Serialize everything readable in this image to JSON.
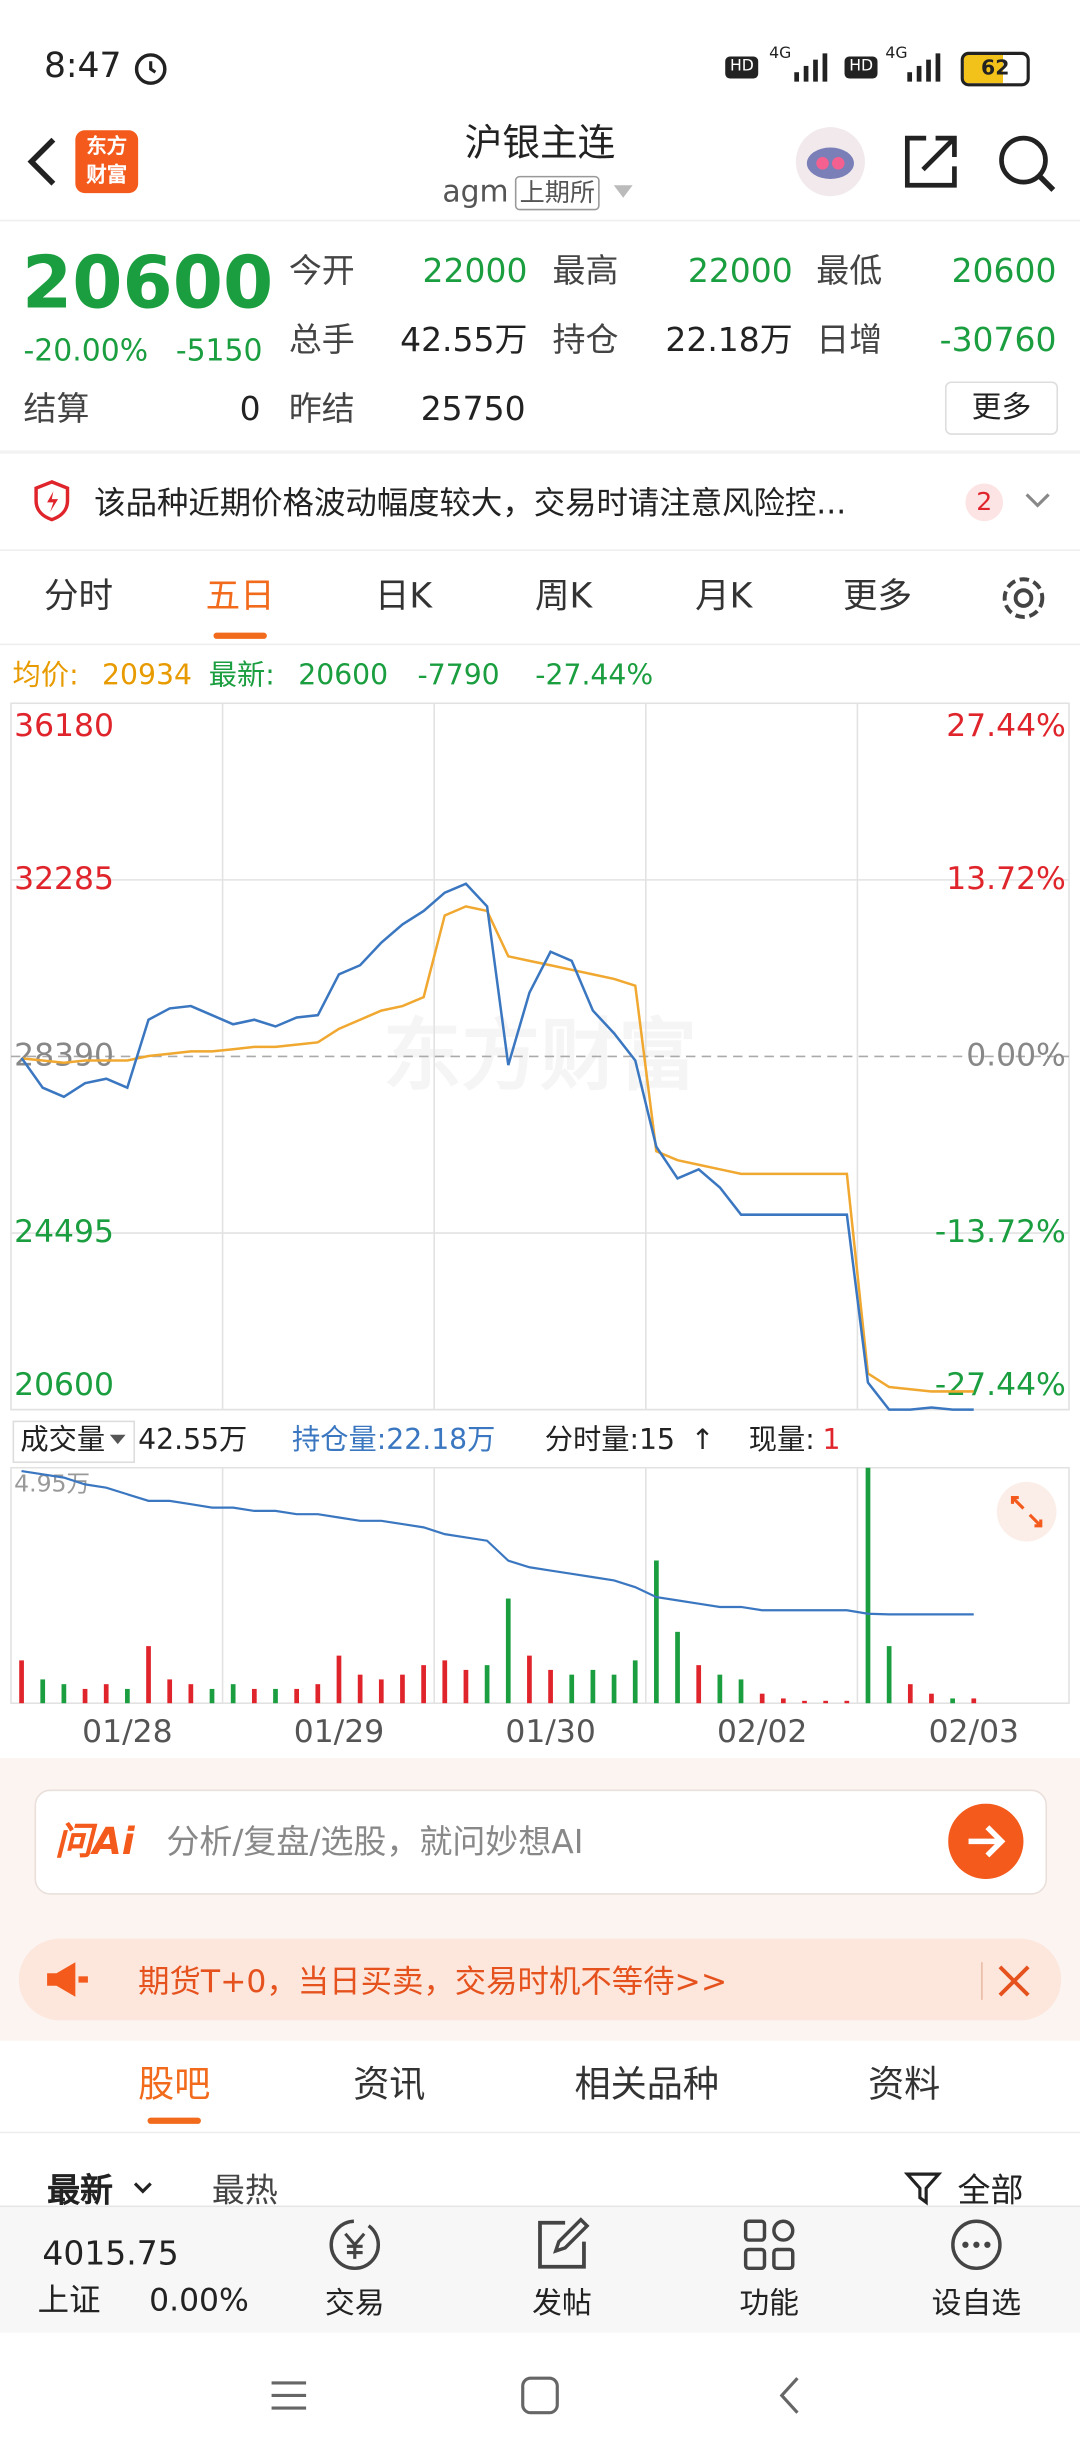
{
  "status_bar": {
    "time": "8:47",
    "indicators": [
      "HD",
      "4G",
      "HD",
      "4G"
    ],
    "battery": "62"
  },
  "header": {
    "logo": [
      "东方",
      "财富"
    ],
    "title": "沪银主连",
    "code": "agm",
    "exchange": "上期所"
  },
  "quote": {
    "price": 20600,
    "change_pct": "-20.00%",
    "change": -5150,
    "fields": [
      {
        "label": "今开",
        "value": 22000
      },
      {
        "label": "最高",
        "value": 22000
      },
      {
        "label": "最低",
        "value": 20600
      },
      {
        "label": "总手",
        "value": "42.55万"
      },
      {
        "label": "持仓",
        "value": "22.18万"
      },
      {
        "label": "日增",
        "value": -30760
      },
      {
        "label": "结算",
        "value": 0
      },
      {
        "label": "昨结",
        "value": 25750
      }
    ],
    "more": "更多"
  },
  "notice": {
    "text": "该品种近期价格波动幅度较大，交易时请注意风险控...",
    "badge": 2
  },
  "chart_tabs": {
    "items": [
      "分时",
      "五日",
      "日K",
      "周K",
      "月K",
      "更多"
    ],
    "active": 1
  },
  "chart_data": {
    "type": "line",
    "avg_label": "均价:",
    "avg": 20934,
    "latest_label": "最新:",
    "latest": 20600,
    "change": -7790,
    "change_pct": "-27.44%",
    "watermark": "东方财富",
    "ylim": [
      20600,
      36180
    ],
    "yticks": [
      20600,
      24495,
      28390,
      32285,
      36180
    ],
    "y2lim": [
      -27.44,
      27.44
    ],
    "y2ticks": [
      {
        "value": -27.44,
        "label": "-27.44%"
      },
      {
        "value": -13.72,
        "label": "-13.72%"
      },
      {
        "value": 0,
        "label": "0.00%"
      },
      {
        "value": 13.72,
        "label": "13.72%"
      },
      {
        "value": 27.44,
        "label": "27.44%"
      }
    ],
    "x_labels": [
      "01/28",
      "01/29",
      "01/30",
      "02/02",
      "02/03"
    ],
    "series": [
      {
        "color": "#3a77c0",
        "values": [
          28360,
          27700,
          27500,
          27800,
          27900,
          27700,
          29200,
          29450,
          29500,
          29300,
          29100,
          29200,
          29050,
          29250,
          29300,
          30200,
          30400,
          30900,
          31300,
          31600,
          32000,
          32200,
          31700,
          28200,
          29800,
          30700,
          30500,
          29400,
          28900,
          28300,
          26400,
          25700,
          25900,
          25500,
          24900,
          24900,
          24900,
          24900,
          24900,
          24900,
          21200,
          20600,
          20600,
          20650,
          20600,
          20600,
          null,
          null,
          null,
          null
        ]
      },
      {
        "color": "#f0a830",
        "values": [
          28350,
          28300,
          28250,
          28300,
          28300,
          28300,
          28400,
          28450,
          28500,
          28500,
          28550,
          28600,
          28600,
          28650,
          28700,
          29000,
          29200,
          29400,
          29500,
          29700,
          31500,
          31700,
          31600,
          30600,
          30500,
          30400,
          30300,
          30200,
          30100,
          29950,
          26300,
          26100,
          26000,
          25900,
          25800,
          25800,
          25800,
          25800,
          25800,
          25800,
          21400,
          21100,
          21050,
          21000,
          21000,
          21000,
          null,
          null,
          null,
          null
        ]
      }
    ],
    "volume": {
      "menu": "成交量",
      "total": "42.55万",
      "oi": "持仓量:22.18万",
      "tick": "分时量:15",
      "tick_dir": "↑",
      "last_label": "现量:",
      "last": 1,
      "ylim": [
        0,
        4.95
      ],
      "yticks": [
        {
          "value": 4.95,
          "label": "4.95万"
        }
      ],
      "up_color": "#e0242b",
      "down_color": "#1a9e3f",
      "values": [
        0.9,
        0.5,
        0.4,
        0.3,
        0.4,
        0.3,
        1.2,
        0.5,
        0.4,
        0.3,
        0.4,
        0.3,
        0.3,
        0.3,
        0.4,
        1.0,
        0.6,
        0.5,
        0.6,
        0.8,
        0.9,
        0.7,
        0.8,
        2.2,
        1.0,
        0.7,
        0.6,
        0.7,
        0.6,
        0.9,
        3.0,
        1.5,
        0.8,
        0.6,
        0.5,
        0.2,
        0.1,
        0.05,
        0.05,
        0.05,
        4.95,
        1.2,
        0.4,
        0.2,
        0.1,
        0.1,
        null,
        null,
        null,
        null
      ],
      "oi_series": {
        "color": "#3a77c0",
        "ylim": [
          19.5,
          26.6
        ],
        "values": [
          26.5,
          26.4,
          26.3,
          26.1,
          26.0,
          25.8,
          25.6,
          25.6,
          25.5,
          25.4,
          25.4,
          25.3,
          25.3,
          25.2,
          25.2,
          25.1,
          25.0,
          25.0,
          24.9,
          24.8,
          24.6,
          24.5,
          24.4,
          23.8,
          23.6,
          23.5,
          23.4,
          23.3,
          23.2,
          23.0,
          22.7,
          22.6,
          22.5,
          22.4,
          22.4,
          22.3,
          22.3,
          22.3,
          22.3,
          22.3,
          22.2,
          22.18,
          22.18,
          22.18,
          22.18,
          22.18,
          null,
          null,
          null,
          null
        ]
      }
    }
  },
  "ai_bar": {
    "brand": "问Ai",
    "placeholder": "分析/复盘/选股，就问妙想AI"
  },
  "promo": {
    "text": "期货T+0，当日买卖，交易时机不等待>>"
  },
  "community_tabs": {
    "items": [
      "股吧",
      "资讯",
      "相关品种",
      "资料"
    ],
    "active": 0
  },
  "sort": {
    "items": [
      "最新",
      "最热"
    ],
    "filter": "全部"
  },
  "bottom_bar": {
    "index_value": 4015.75,
    "index_name": "上证",
    "index_change": "0.00%",
    "items": [
      "交易",
      "发帖",
      "功能",
      "设自选"
    ]
  }
}
